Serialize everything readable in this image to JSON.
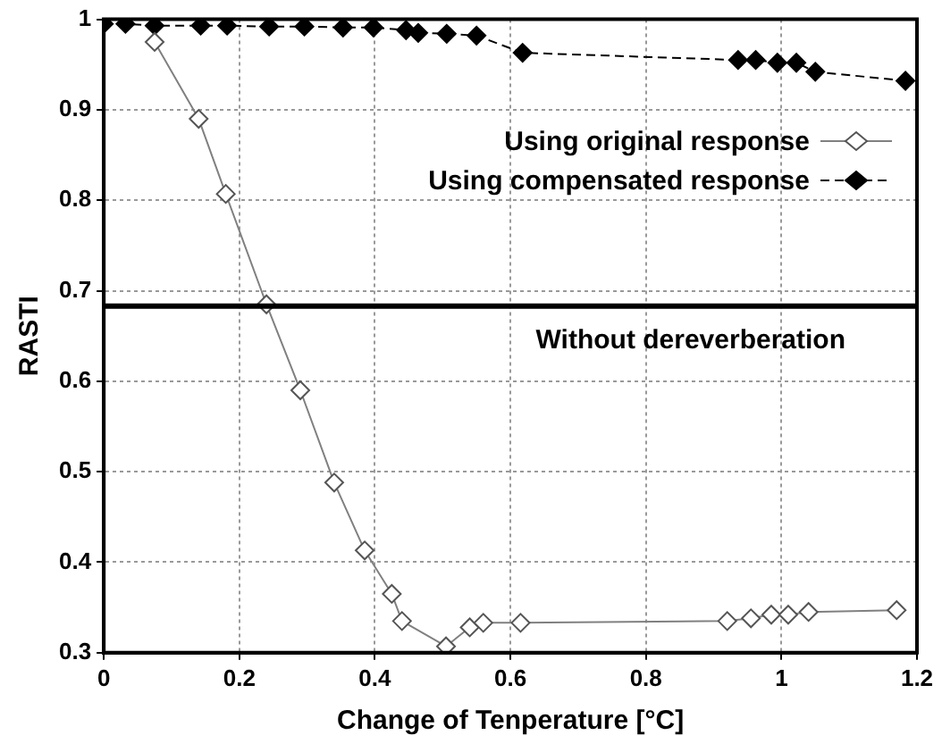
{
  "chart_data": {
    "type": "line",
    "xlabel": "Change of Tenperature [°C]",
    "ylabel": "RASTI",
    "xlim": [
      0,
      1.2
    ],
    "xticks": [
      0,
      0.2,
      0.4,
      0.6,
      0.8,
      1,
      1.2
    ],
    "ylim": [
      0.3,
      1
    ],
    "yticks": [
      0.3,
      0.4,
      0.5,
      0.6,
      0.7,
      0.8,
      0.9,
      1
    ],
    "grid": true,
    "legend": "top right",
    "marker": "diamond",
    "series": [
      {
        "name": "Using original response",
        "color": "#808080",
        "line_style": "solid",
        "x": [
          0.075,
          0.14,
          0.18,
          0.24,
          0.29,
          0.34,
          0.385,
          0.425,
          0.44,
          0.505,
          0.54,
          0.56,
          0.615,
          0.92,
          0.955,
          0.985,
          1.01,
          1.04,
          1.17
        ],
        "values": [
          0.975,
          0.89,
          0.807,
          0.685,
          0.59,
          0.488,
          0.413,
          0.365,
          0.335,
          0.307,
          0.328,
          0.333,
          0.333,
          0.335,
          0.338,
          0.342,
          0.342,
          0.345,
          0.347
        ]
      },
      {
        "name": "Using compensated response",
        "color": "#000000",
        "line_style": "dashed",
        "x": [
          0,
          0.032,
          0.075,
          0.143,
          0.182,
          0.244,
          0.296,
          0.353,
          0.398,
          0.446,
          0.464,
          0.506,
          0.55,
          0.618,
          0.936,
          0.962,
          0.994,
          1.022,
          1.05,
          1.183
        ],
        "values": [
          0.995,
          0.995,
          0.993,
          0.993,
          0.993,
          0.992,
          0.992,
          0.991,
          0.991,
          0.988,
          0.985,
          0.984,
          0.982,
          0.963,
          0.955,
          0.955,
          0.952,
          0.952,
          0.942,
          0.932
        ]
      }
    ],
    "ref_lines": [
      {
        "axis": "y",
        "value": 0.683,
        "label": "Without dereverberation",
        "color": "#000000",
        "line_style": "solid"
      }
    ]
  }
}
